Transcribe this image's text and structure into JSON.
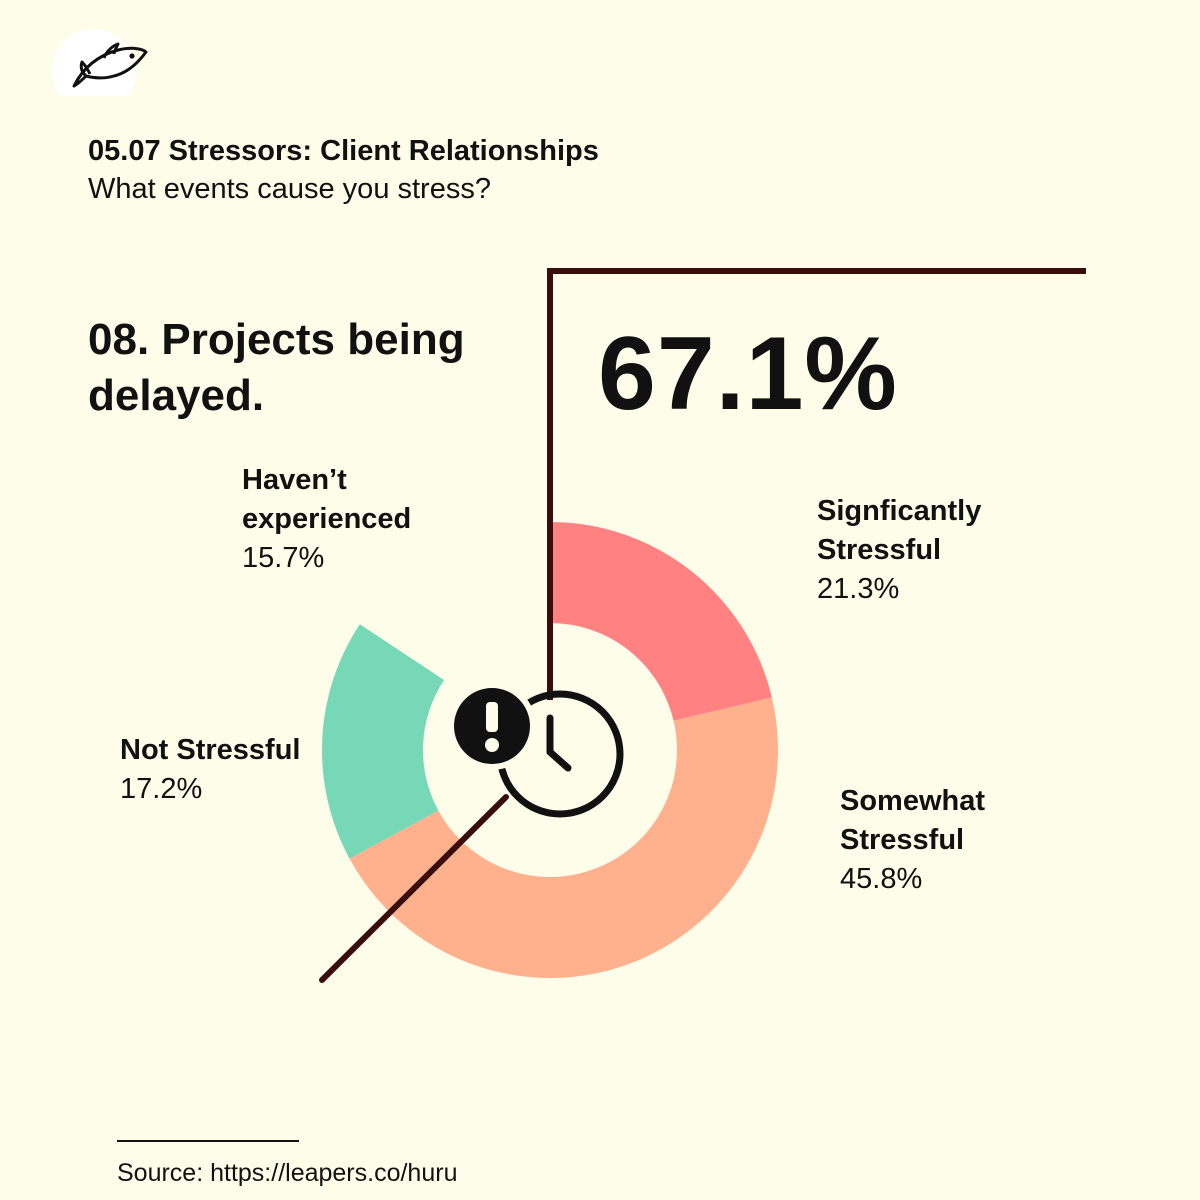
{
  "header": {
    "title": "05.07 Stressors: Client Relationships",
    "subtitle": "What events cause you stress?"
  },
  "question": "08. Projects being delayed.",
  "highlight_percent": "67.1%",
  "icons": {
    "logo": "fish-logo-icon",
    "center": "alert-clock-icon"
  },
  "chart_data": {
    "type": "pie",
    "style": "donut",
    "title": "",
    "slices": [
      {
        "label": "Signficantly Stressful",
        "value": 21.3,
        "display": "21.3%",
        "color": "#ff8181"
      },
      {
        "label": "Somewhat Stressful",
        "value": 45.8,
        "display": "45.8%",
        "color": "#ffb08c"
      },
      {
        "label": "Not Stressful",
        "value": 17.2,
        "display": "17.2%",
        "color": "#77d8b7"
      },
      {
        "label": "Haven’t experienced",
        "value": 15.7,
        "display": "15.7%",
        "color": "none"
      }
    ],
    "highlight": {
      "slices": [
        "Signficantly Stressful",
        "Somewhat Stressful"
      ],
      "total": "67.1%"
    }
  },
  "footer": {
    "source": "Source: https://leapers.co/huru"
  },
  "colors": {
    "background": "#fefde9",
    "line": "#3a0d0d",
    "text": "#111111"
  }
}
